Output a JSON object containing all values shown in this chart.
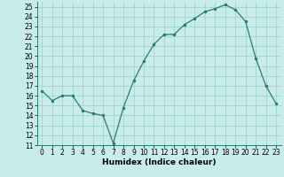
{
  "x": [
    0,
    1,
    2,
    3,
    4,
    5,
    6,
    7,
    8,
    9,
    10,
    11,
    12,
    13,
    14,
    15,
    16,
    17,
    18,
    19,
    20,
    21,
    22,
    23
  ],
  "y": [
    16.5,
    15.5,
    16.0,
    16.0,
    14.5,
    14.2,
    14.0,
    11.2,
    14.8,
    17.5,
    19.5,
    21.2,
    22.2,
    22.2,
    23.2,
    23.8,
    24.5,
    24.8,
    25.2,
    24.7,
    23.5,
    19.8,
    17.0,
    15.2
  ],
  "xlabel": "Humidex (Indice chaleur)",
  "ylabel": "",
  "xlim": [
    -0.5,
    23.5
  ],
  "ylim": [
    11,
    25.5
  ],
  "yticks": [
    11,
    12,
    13,
    14,
    15,
    16,
    17,
    18,
    19,
    20,
    21,
    22,
    23,
    24,
    25
  ],
  "xticks": [
    0,
    1,
    2,
    3,
    4,
    5,
    6,
    7,
    8,
    9,
    10,
    11,
    12,
    13,
    14,
    15,
    16,
    17,
    18,
    19,
    20,
    21,
    22,
    23
  ],
  "line_color": "#2A7D70",
  "marker_color": "#2A7D70",
  "bg_color": "#C8EBEB",
  "grid_color": "#9ACFCC",
  "label_fontsize": 6.5,
  "tick_fontsize": 5.5
}
